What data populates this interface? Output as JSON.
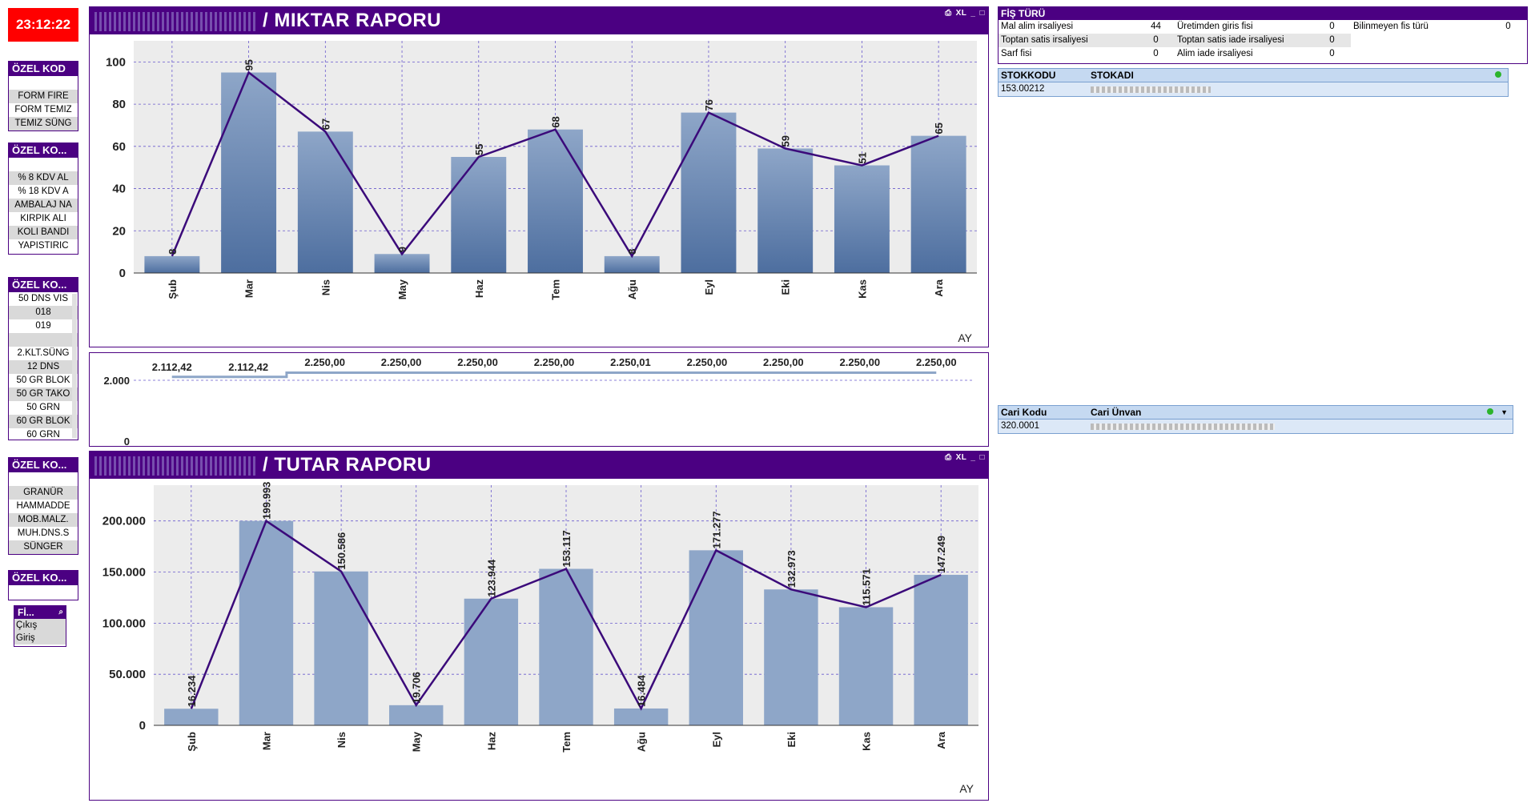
{
  "clock": "23:12:22",
  "listboxes": [
    {
      "title": "ÖZEL KOD",
      "items": [
        "",
        "FORM FIRE",
        "FORM TEMIZ",
        "TEMIZ SÜNG"
      ]
    },
    {
      "title": "ÖZEL KO...",
      "items": [
        "",
        "% 8 KDV AL",
        "% 18 KDV A",
        "AMBALAJ NA",
        "KIRPIK ALI",
        "KOLI BANDI",
        "YAPISTIRIC"
      ]
    },
    {
      "title": "ÖZEL KO...",
      "items": [
        "50 DNS VIS",
        "018",
        "019",
        "",
        "2.KLT.SÜNG",
        "12 DNS",
        "50 GR BLOK",
        "50 GR TAKO",
        "50 GRN",
        "60 GR BLOK",
        "60 GRN"
      ]
    },
    {
      "title": "ÖZEL KO...",
      "items": [
        "",
        "GRANÜR",
        "HAMMADDE",
        "MOB.MALZ.",
        "MUH.DNS.S",
        "SÜNGER"
      ]
    },
    {
      "title": "ÖZEL KO...",
      "items": [
        ""
      ]
    }
  ],
  "fis_box": {
    "title": "Fİ...",
    "items": [
      "Çıkış",
      "Giriş"
    ]
  },
  "miktar": {
    "title": "/ MIKTAR RAPORU",
    "controls": [
      "XL",
      "_",
      "□"
    ],
    "xlabel": "AY",
    "chart_data": {
      "type": "bar",
      "categories": [
        "Şub",
        "Mar",
        "Nis",
        "May",
        "Haz",
        "Tem",
        "Ağu",
        "Eyl",
        "Eki",
        "Kas",
        "Ara"
      ],
      "values": [
        8,
        95,
        67,
        9,
        55,
        68,
        8,
        76,
        59,
        51,
        65
      ],
      "data_labels": [
        "8",
        "95",
        "67",
        "9",
        "55",
        "68",
        "8",
        "76",
        "59",
        "51",
        "65"
      ],
      "ylim": [
        0,
        110
      ],
      "yticks": [
        0,
        20,
        40,
        60,
        80,
        100
      ],
      "line_overlay": true
    }
  },
  "mid": {
    "chart_data": {
      "type": "line",
      "categories": [
        "Şub",
        "Mar",
        "Nis",
        "May",
        "Haz",
        "Tem",
        "Ağu",
        "Eyl",
        "Eki",
        "Kas",
        "Ara"
      ],
      "values": [
        2112.42,
        2112.42,
        2250.0,
        2250.0,
        2250.0,
        2250.0,
        2250.01,
        2250.0,
        2250.0,
        2250.0,
        2250.0
      ],
      "data_labels": [
        "2.112,42",
        "2.112,42",
        "2.250,00",
        "2.250,00",
        "2.250,00",
        "2.250,00",
        "2.250,01",
        "2.250,00",
        "2.250,00",
        "2.250,00",
        "2.250,00"
      ],
      "yticks": [
        "2.000",
        "0"
      ]
    }
  },
  "tutar": {
    "title": "/ TUTAR RAPORU",
    "controls": [
      "XL",
      "_",
      "□"
    ],
    "xlabel": "AY",
    "chart_data": {
      "type": "bar",
      "categories": [
        "Şub",
        "Mar",
        "Nis",
        "May",
        "Haz",
        "Tem",
        "Ağu",
        "Eyl",
        "Eki",
        "Kas",
        "Ara"
      ],
      "values": [
        16234,
        199993,
        150586,
        19706,
        123944,
        153117,
        16484,
        171277,
        132973,
        115571,
        147249
      ],
      "data_labels": [
        "16.234",
        "199.993",
        "150.586",
        "19.706",
        "123.944",
        "153.117",
        "16.484",
        "171.277",
        "132.973",
        "115.571",
        "147.249"
      ],
      "ylim": [
        0,
        235000
      ],
      "yticks": [
        0,
        50000,
        100000,
        150000,
        200000
      ],
      "ytick_labels": [
        "0",
        "50.000",
        "100.000",
        "150.000",
        "200.000"
      ],
      "line_overlay": true
    }
  },
  "fis_turu": {
    "title": "FİŞ TÜRÜ",
    "rows": [
      [
        "Mal alim irsaliyesi",
        "44",
        "Üretimden giris fisi",
        "0",
        "Bilinmeyen fis türü",
        "0"
      ],
      [
        "Toptan satis irsaliyesi",
        "0",
        "Toptan satis iade irsaliyesi",
        "0",
        "",
        ""
      ],
      [
        "Sarf fisi",
        "0",
        "Alim iade irsaliyesi",
        "0",
        "",
        ""
      ]
    ]
  },
  "stok": {
    "headers": [
      "STOKKODU",
      "STOKADI"
    ],
    "row": [
      "153.00212",
      ""
    ]
  },
  "cari": {
    "headers": [
      "Cari Kodu",
      "Cari Ünvan"
    ],
    "row": [
      "320.0001",
      ""
    ]
  },
  "colors": {
    "accent": "#4b0082",
    "bar": "#6f8fba",
    "line": "#3b0a7a"
  }
}
